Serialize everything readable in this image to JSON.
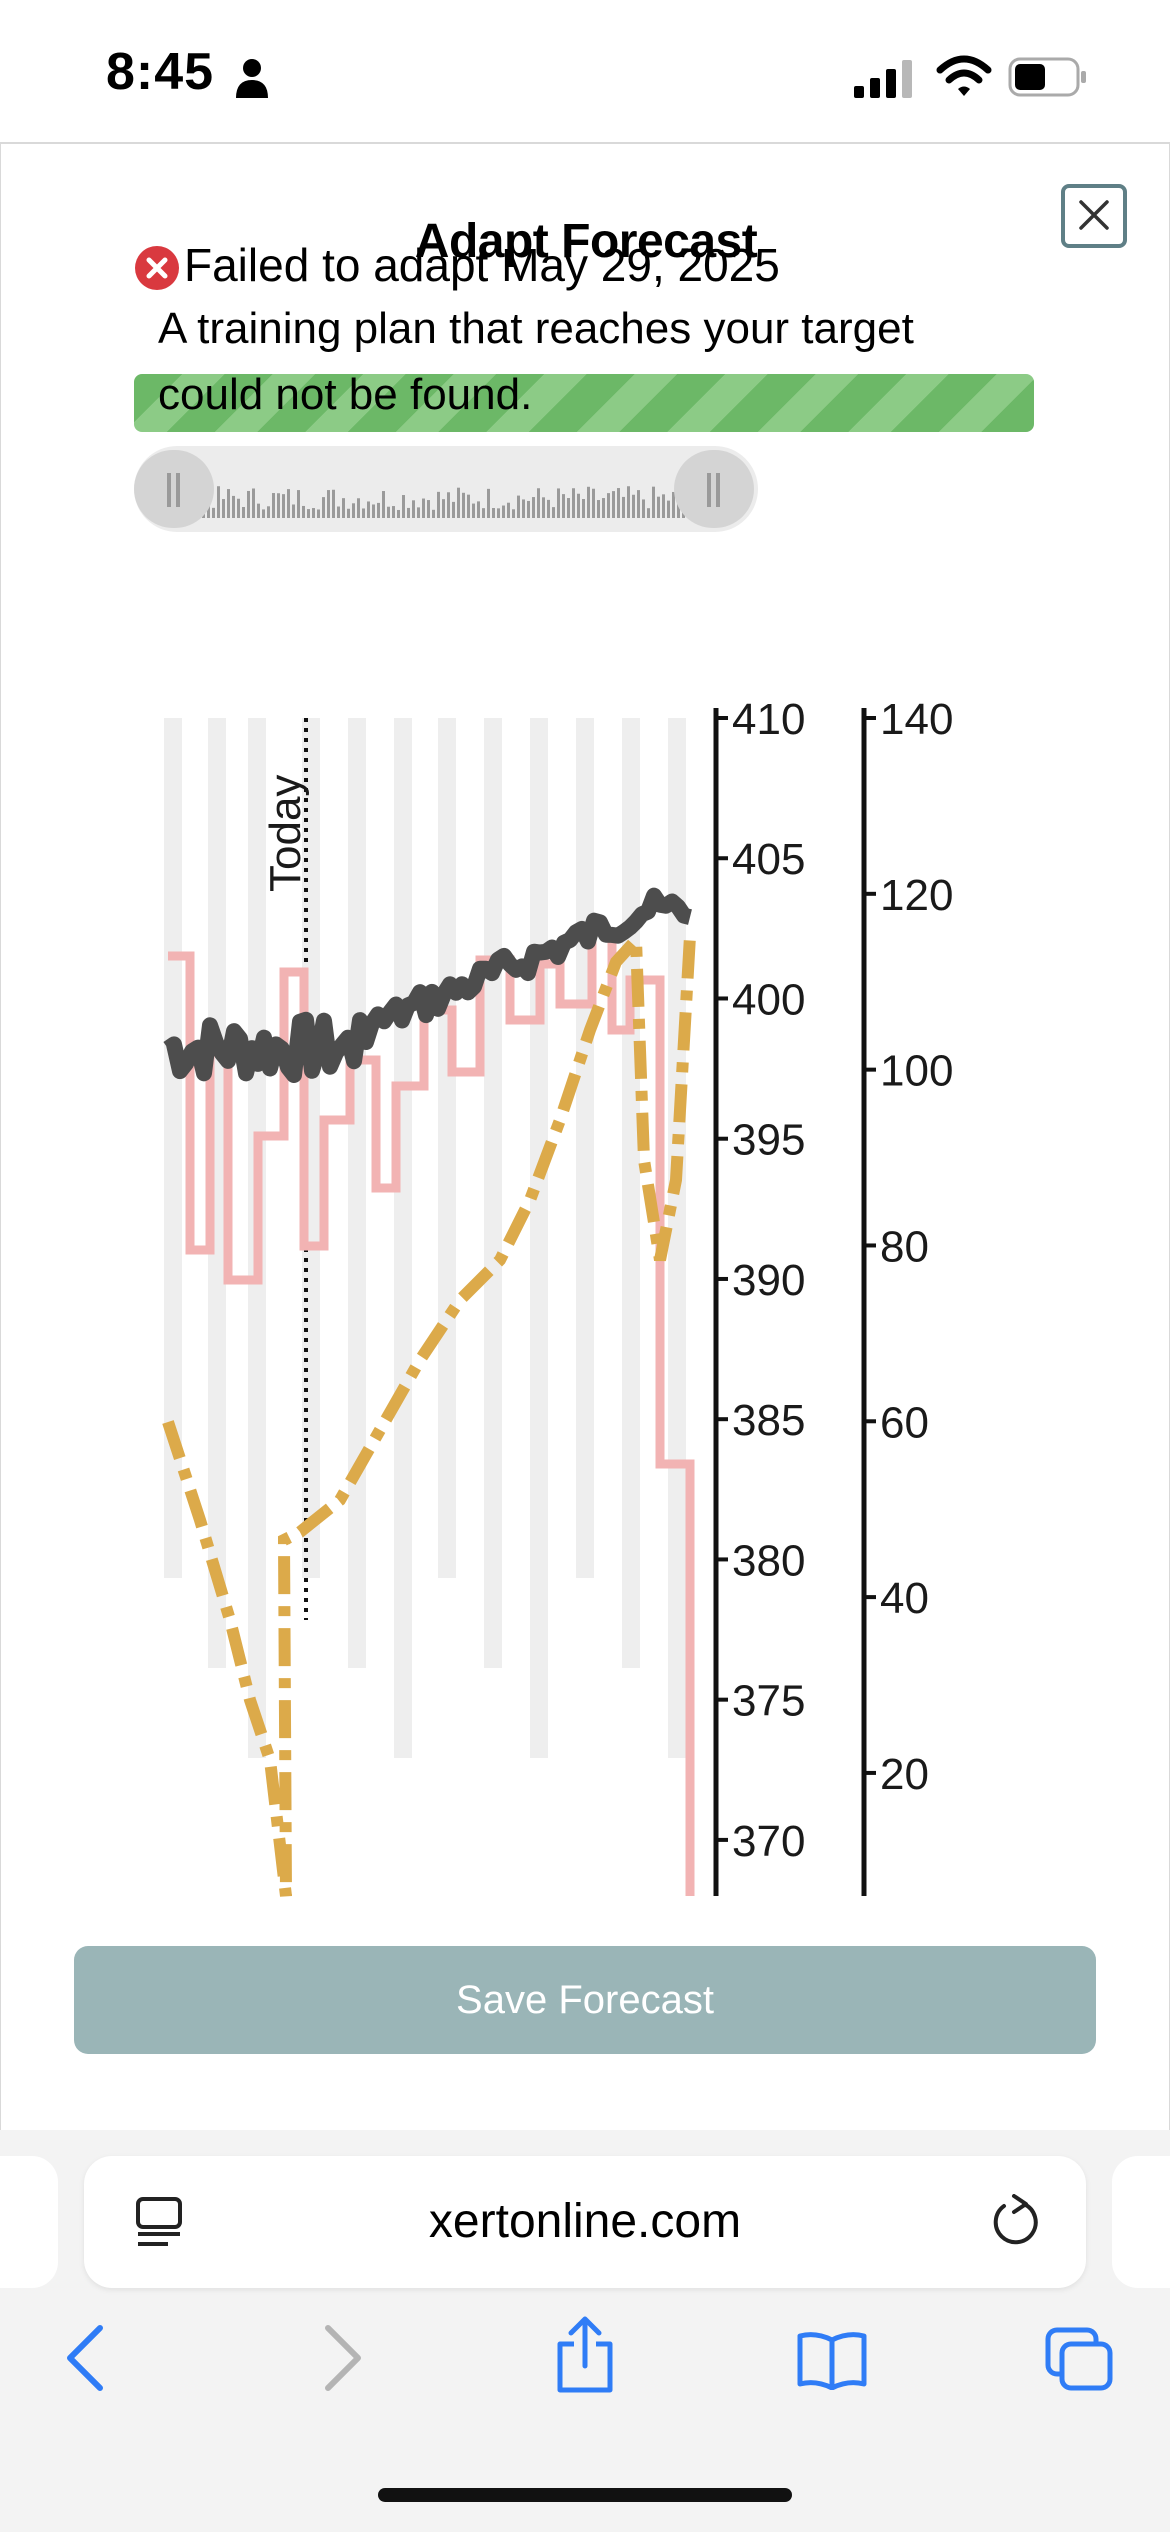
{
  "status_bar": {
    "time": "8:45",
    "icons": [
      "person-icon",
      "signal-icon",
      "wifi-icon",
      "battery-icon"
    ]
  },
  "modal": {
    "title": "Adapt Forecast",
    "close_icon": "close-icon",
    "status_icon": "error-icon",
    "status_text": "Failed to adapt May 29, 2025",
    "message_line1": "A training plan that reaches your target",
    "message_line2": "could not be found.",
    "progress_fraction": 1.0,
    "colors": {
      "progress": "#6cb867",
      "error": "#d9393f",
      "save_button": "#9ab5b7",
      "close_border": "#5f7f86"
    },
    "save_label": "Save Forecast"
  },
  "chart_data": {
    "type": "line",
    "today_label": "Today",
    "left_axis": {
      "ticks": [
        410,
        405,
        400,
        395,
        390,
        385,
        380,
        375,
        370
      ],
      "range": [
        368,
        410
      ]
    },
    "right_axis": {
      "ticks": [
        140,
        120,
        100,
        80,
        60,
        40,
        20
      ],
      "range": [
        6,
        140
      ]
    },
    "colors": {
      "dark_series": "#4d4d4d",
      "pink_series": "#f2b3b3",
      "gold_series": "#dcaa4a",
      "bars": "#ececec"
    }
  },
  "browser": {
    "url": "xertonline.com",
    "icons": [
      "reader-icon",
      "reload-icon",
      "back-icon",
      "forward-icon",
      "share-icon",
      "bookmarks-icon",
      "tabs-icon"
    ]
  }
}
